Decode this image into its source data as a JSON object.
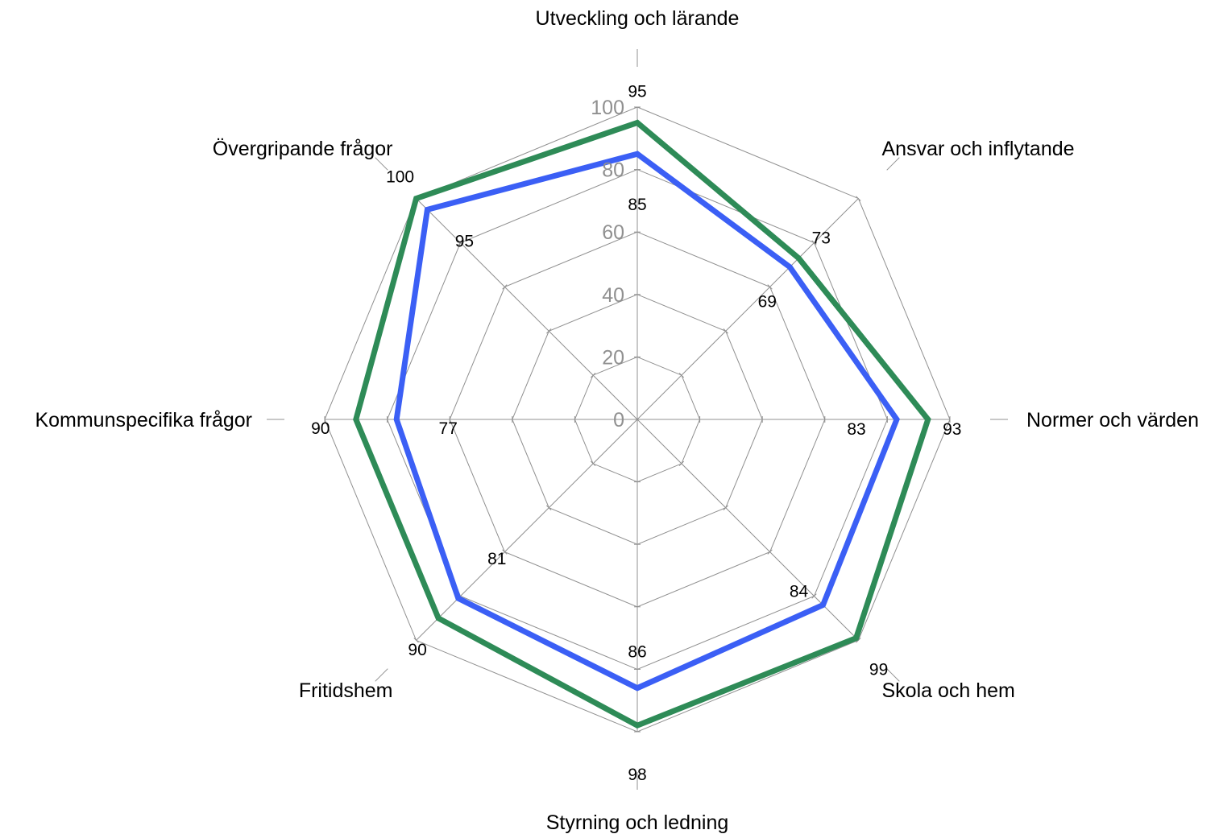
{
  "chart_data": {
    "type": "radar",
    "title": "",
    "categories": [
      "Utveckling och lärande",
      "Ansvar och inflytande",
      "Normer och värden",
      "Skola och hem",
      "Styrning och ledning",
      "Fritidshem",
      "Kommunspecifika frågor",
      "Övergripande frågor"
    ],
    "rlim": [
      0,
      100
    ],
    "rticks": [
      "0",
      "20",
      "40",
      "60",
      "80",
      "100"
    ],
    "rtick_values": [
      0,
      20,
      40,
      60,
      80,
      100
    ],
    "grid": true,
    "legend": "none",
    "series": [
      {
        "values": [
          95,
          73,
          93,
          99,
          98,
          90,
          90,
          100
        ],
        "labels": [
          "95",
          "73",
          "93",
          "99",
          "98",
          "90",
          "90",
          "100"
        ],
        "color": "#2e8b57"
      },
      {
        "values": [
          85,
          69,
          83,
          84,
          86,
          81,
          77,
          95
        ],
        "labels": [
          "85",
          "69",
          "83",
          "84",
          "86",
          "81",
          "77",
          "95"
        ],
        "color": "#3b5ff5"
      }
    ]
  }
}
